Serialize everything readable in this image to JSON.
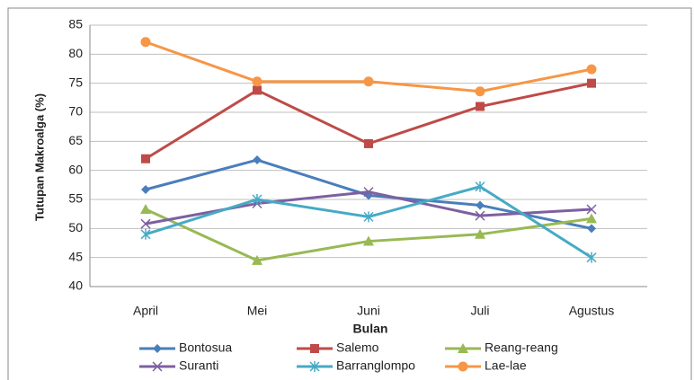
{
  "chart_data": {
    "type": "line",
    "categories": [
      "April",
      "Mei",
      "Juni",
      "Juli",
      "Agustus"
    ],
    "x_label": "Bulan",
    "y_label": "Tutupan Makroalga (%)",
    "ylim": [
      40,
      85
    ],
    "yticks": [
      40,
      45,
      50,
      55,
      60,
      65,
      70,
      75,
      80,
      85
    ],
    "grid": true,
    "legend": "bottom",
    "series": [
      {
        "name": "Bontosua",
        "color": "#4a7ebb",
        "marker": "diamond",
        "values": [
          56.7,
          61.8,
          55.7,
          54,
          50
        ]
      },
      {
        "name": "Salemo",
        "color": "#be4b48",
        "marker": "square",
        "values": [
          62,
          73.8,
          64.6,
          71,
          75
        ]
      },
      {
        "name": "Reang-reang",
        "color": "#98b954",
        "marker": "triangle",
        "values": [
          53.3,
          44.5,
          47.8,
          49,
          51.7
        ]
      },
      {
        "name": "Suranti",
        "color": "#7d60a0",
        "marker": "x",
        "values": [
          50.8,
          54.3,
          56.3,
          52.2,
          53.3
        ]
      },
      {
        "name": "Barranglompo",
        "color": "#46aac5",
        "marker": "star",
        "values": [
          49,
          55,
          52,
          57.2,
          45
        ]
      },
      {
        "name": "Lae-lae",
        "color": "#f79646",
        "marker": "circle",
        "values": [
          82.1,
          75.3,
          75.3,
          73.6,
          77.4
        ]
      }
    ]
  }
}
